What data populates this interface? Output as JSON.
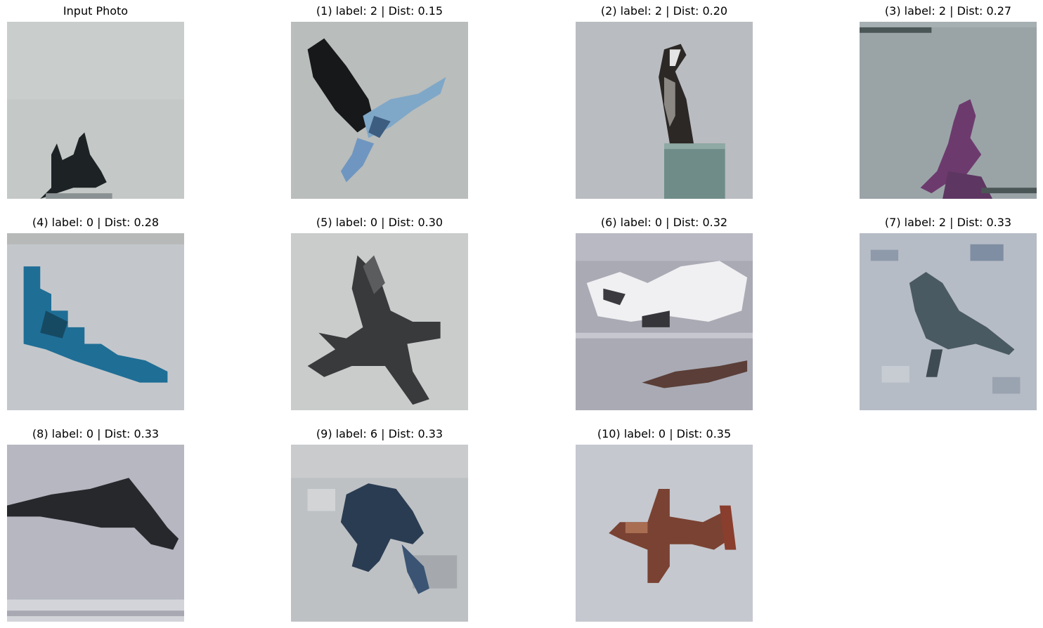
{
  "panels": [
    {
      "title": "Input Photo",
      "subject": "small dark aircraft silhouette on pale sky"
    },
    {
      "title": "(1) label: 2 | Dist: 0.15",
      "subject": "dark bird with blue wings in flight"
    },
    {
      "title": "(2) label: 2 | Dist: 0.20",
      "subject": "bird perched on a post"
    },
    {
      "title": "(3) label: 2 | Dist: 0.27",
      "subject": "purple bird"
    },
    {
      "title": "(4) label: 0 | Dist: 0.28",
      "subject": "blue stealth bomber"
    },
    {
      "title": "(5) label: 0 | Dist: 0.30",
      "subject": "grey jet aircraft"
    },
    {
      "title": "(6) label: 0 | Dist: 0.32",
      "subject": "white aircraft above ground"
    },
    {
      "title": "(7) label: 2 | Dist: 0.33",
      "subject": "small bird on speckled background"
    },
    {
      "title": "(8) label: 0 | Dist: 0.33",
      "subject": "dark stealth bomber silhouette"
    },
    {
      "title": "(9) label: 6 | Dist: 0.33",
      "subject": "blue frog"
    },
    {
      "title": "(10) label: 0 | Dist: 0.35",
      "subject": "red-brown aircraft"
    }
  ]
}
